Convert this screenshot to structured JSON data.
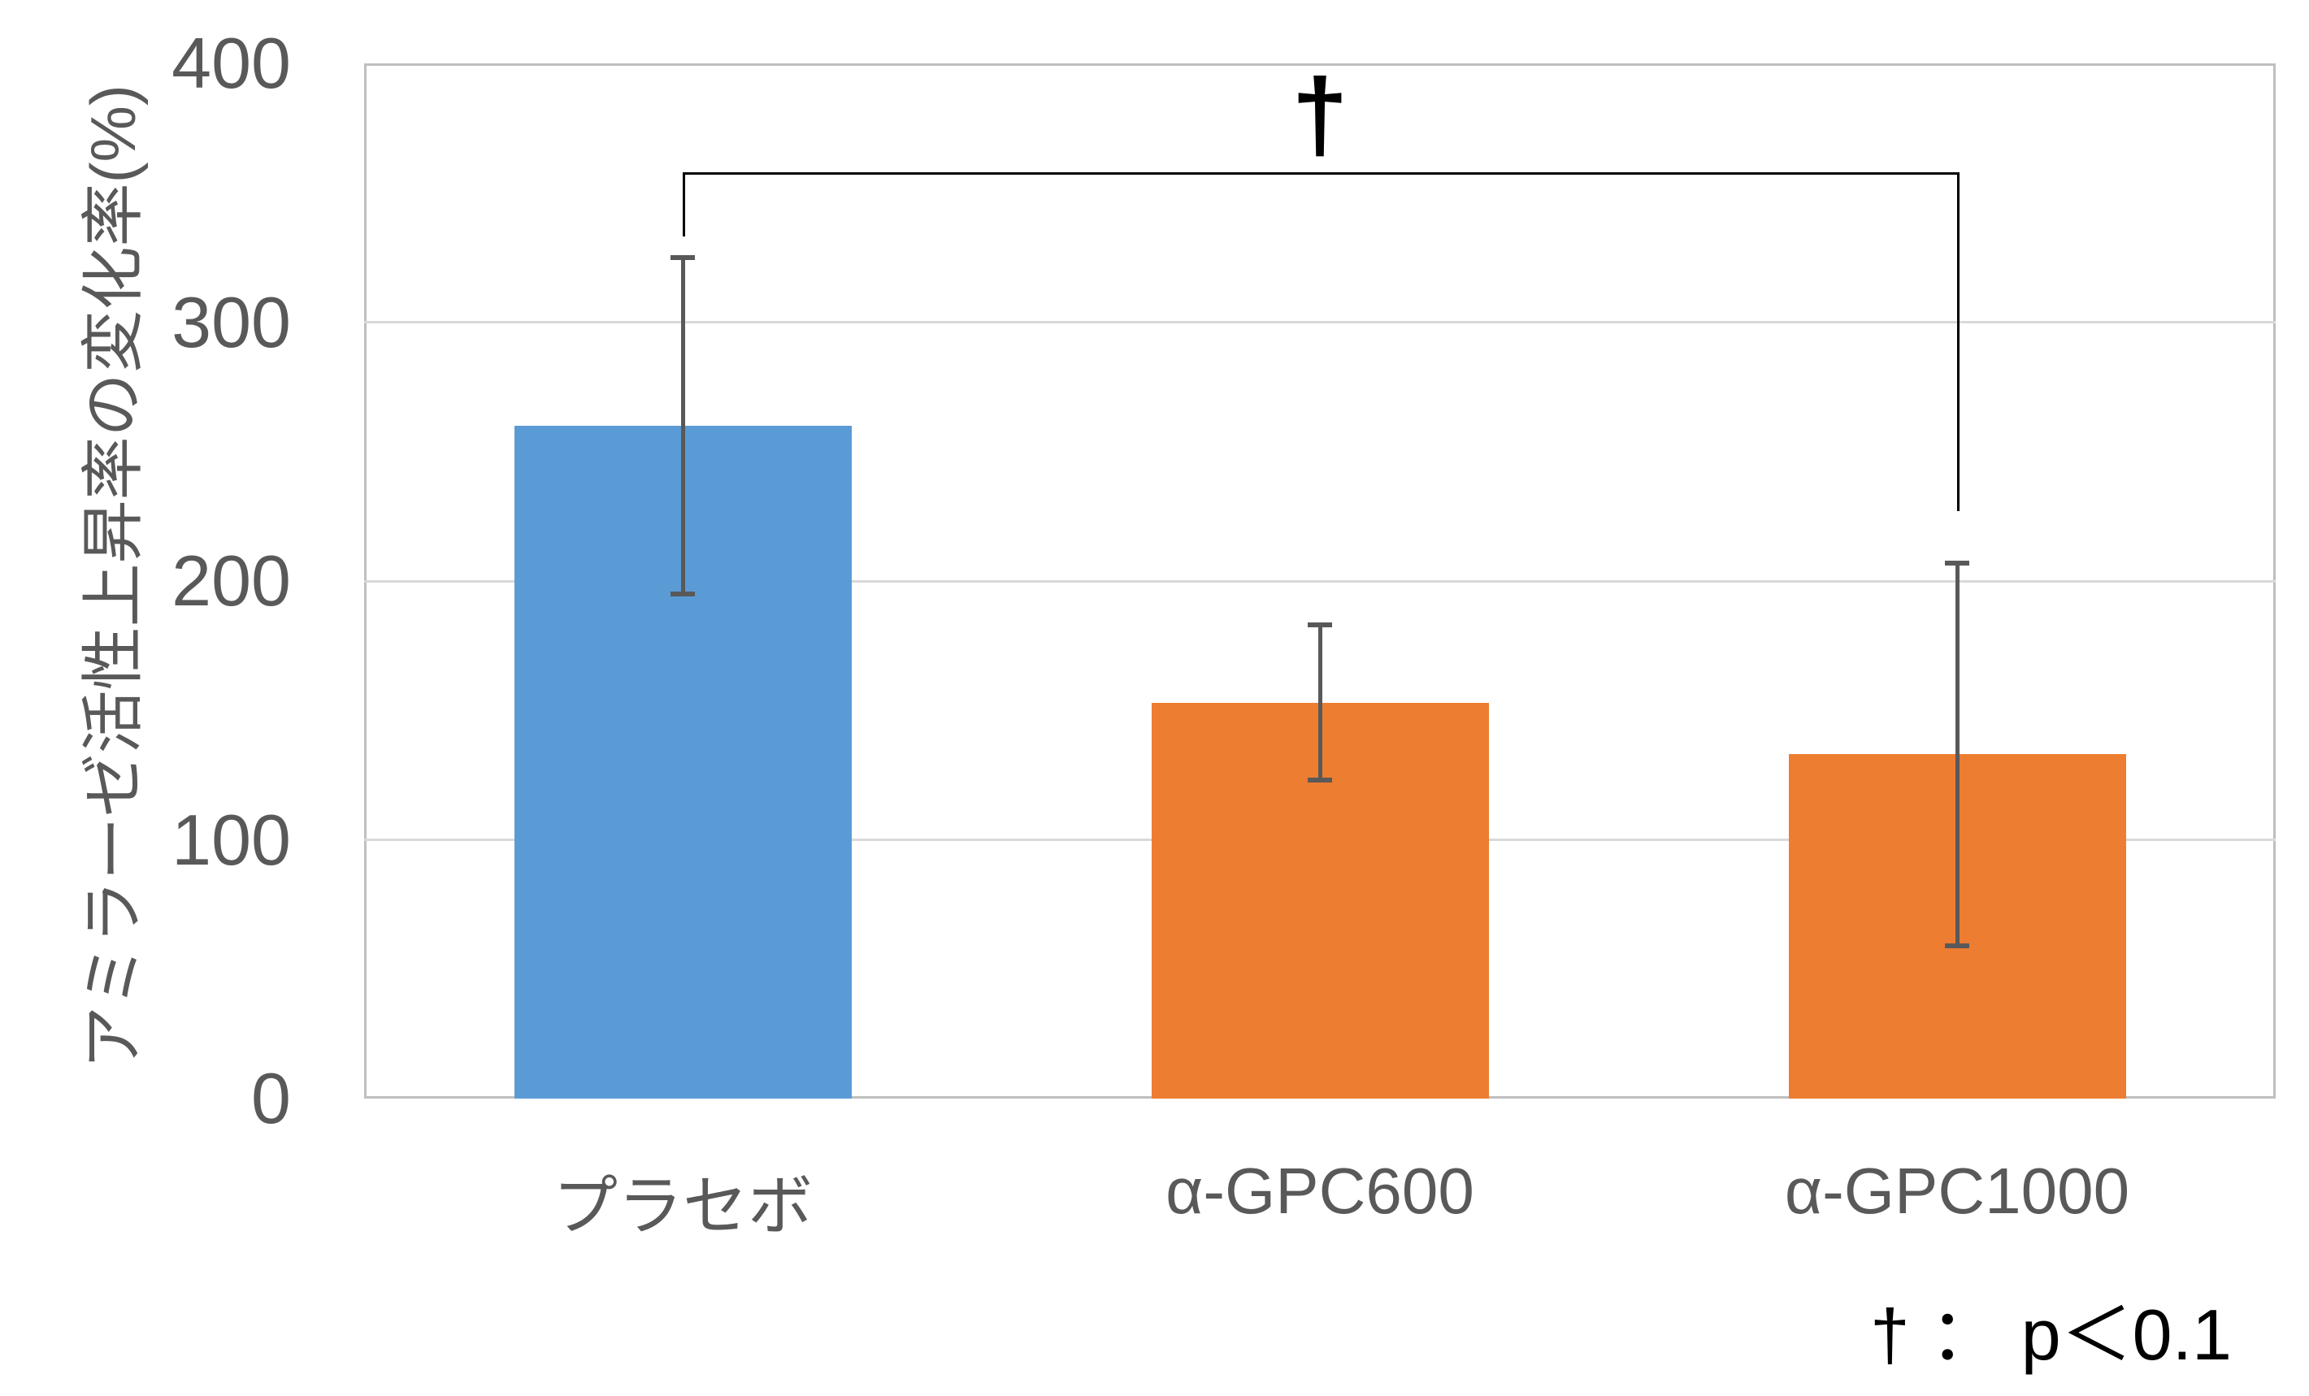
{
  "chart_data": {
    "type": "bar",
    "title": "",
    "ylabel": "アミラーゼ活性上昇率の変化率(%)",
    "categories": [
      "プラセボ",
      "α-GPC600",
      "α-GPC1000"
    ],
    "values": [
      260,
      153,
      133
    ],
    "error_bars_plus_minus": [
      65,
      30,
      74
    ],
    "y_ticks": [
      0,
      100,
      200,
      300,
      400
    ],
    "ylim": [
      0,
      400
    ],
    "grid": "horizontal-light",
    "legend_position": "none",
    "bar_colors": [
      "#5B9BD5",
      "#ED7D31",
      "#ED7D31"
    ],
    "significance": {
      "symbol": "†",
      "from_category": "プラセボ",
      "to_category": "α-GPC1000",
      "bracket_y_value": 358,
      "left_arm_end_value": 333,
      "right_arm_end_value": 227
    },
    "footnote": "† ： p＜0.1"
  },
  "style": {
    "axis_text_color": "#595959",
    "gridline_color": "#D9D9D9",
    "plot_border_color": "#BFBFBF",
    "error_bar_color": "#595959",
    "significance_color": "#000000",
    "background": "#FFFFFF"
  }
}
